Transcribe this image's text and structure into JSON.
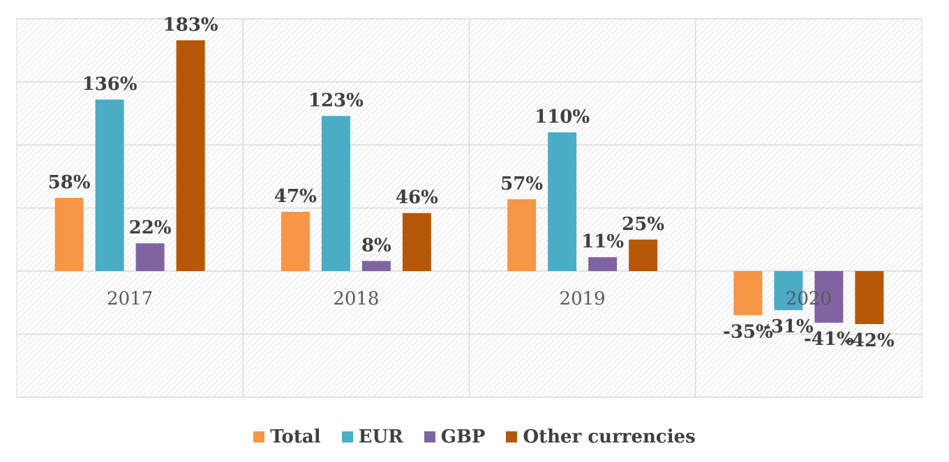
{
  "chart_data": {
    "type": "bar",
    "categories": [
      "2017",
      "2018",
      "2019",
      "2020"
    ],
    "series": [
      {
        "name": "Total",
        "color": "#F79646",
        "values": [
          58,
          47,
          57,
          -35
        ],
        "labels": [
          "58%",
          "47%",
          "57%",
          "-35%"
        ]
      },
      {
        "name": "EUR",
        "color": "#4BACC6",
        "values": [
          136,
          123,
          110,
          -31
        ],
        "labels": [
          "136%",
          "123%",
          "110%",
          "-31%"
        ]
      },
      {
        "name": "GBP",
        "color": "#8064A2",
        "values": [
          22,
          8,
          11,
          -41
        ],
        "labels": [
          "22%",
          "8%",
          "11%",
          "-41%"
        ]
      },
      {
        "name": "Other currencies",
        "color": "#B65708",
        "values": [
          183,
          46,
          25,
          -42
        ],
        "labels": [
          "183%",
          "46%",
          "25%",
          "-42%"
        ]
      }
    ],
    "ylim": [
      -100,
      200
    ],
    "grid": true,
    "legend_position": "bottom"
  }
}
